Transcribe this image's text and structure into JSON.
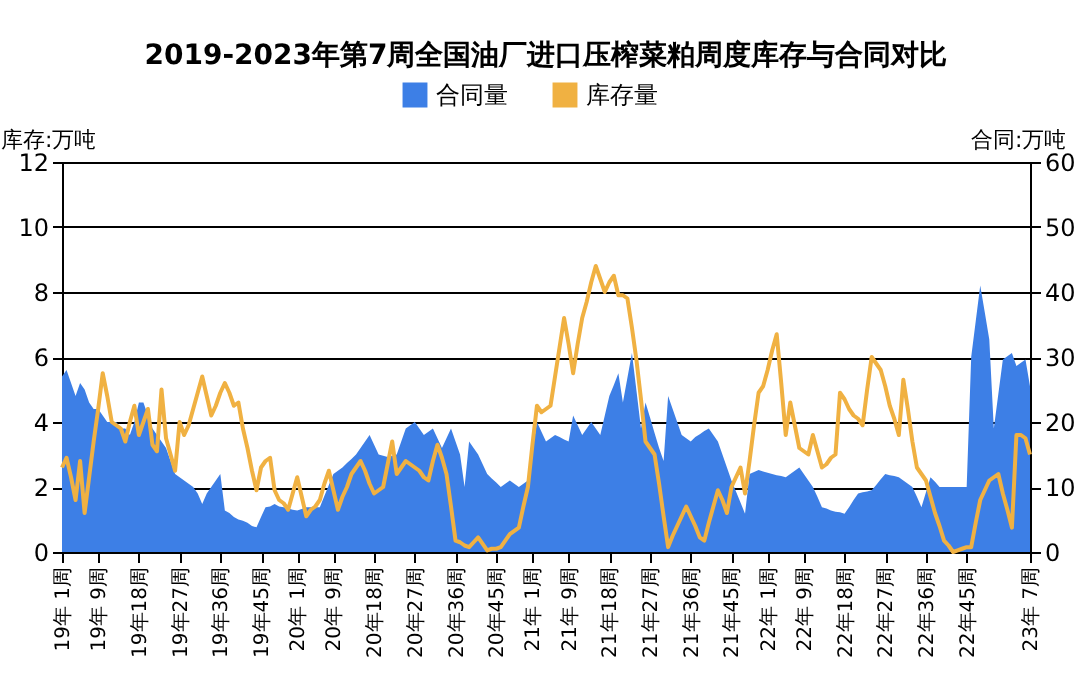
{
  "chart_data": {
    "type": "line",
    "title": "2019-2023年第7周全国油厂进口压榨菜粕周度库存与合同对比",
    "ylabel": "库存:万吨",
    "y2label": "合同:万吨",
    "legend": "top",
    "grid": "y",
    "categories": [
      "19年 1周",
      null,
      null,
      null,
      null,
      null,
      null,
      null,
      "19年 9周",
      null,
      null,
      null,
      null,
      null,
      null,
      null,
      null,
      "19年18周",
      null,
      null,
      null,
      null,
      null,
      null,
      null,
      null,
      "19年27周",
      null,
      null,
      null,
      null,
      null,
      null,
      null,
      null,
      "19年36周",
      null,
      null,
      null,
      null,
      null,
      null,
      null,
      null,
      "19年45周",
      null,
      null,
      null,
      null,
      null,
      null,
      null,
      "20年 1周",
      null,
      null,
      null,
      null,
      null,
      null,
      null,
      "20年 9周",
      null,
      null,
      null,
      null,
      null,
      null,
      null,
      null,
      "20年18周",
      null,
      null,
      null,
      null,
      null,
      null,
      null,
      null,
      "20年27周",
      null,
      null,
      null,
      null,
      null,
      null,
      null,
      null,
      "20年36周",
      null,
      null,
      null,
      null,
      null,
      null,
      null,
      null,
      "20年45周",
      null,
      null,
      null,
      null,
      null,
      null,
      null,
      "21年 1周",
      null,
      null,
      null,
      null,
      null,
      null,
      null,
      "21年 9周",
      null,
      null,
      null,
      null,
      null,
      null,
      null,
      null,
      "21年18周",
      null,
      null,
      null,
      null,
      null,
      null,
      null,
      null,
      "21年27周",
      null,
      null,
      null,
      null,
      null,
      null,
      null,
      null,
      "21年36周",
      null,
      null,
      null,
      null,
      null,
      null,
      null,
      null,
      "21年45周",
      null,
      null,
      null,
      null,
      null,
      null,
      null,
      "22年 1周",
      null,
      null,
      null,
      null,
      null,
      null,
      null,
      "22年 9周",
      null,
      null,
      null,
      null,
      null,
      null,
      null,
      null,
      "22年18周",
      null,
      null,
      null,
      null,
      null,
      null,
      null,
      null,
      "22年27周",
      null,
      null,
      null,
      null,
      null,
      null,
      null,
      null,
      "22年36周",
      null,
      null,
      null,
      null,
      null,
      null,
      null,
      null,
      "22年45周",
      null,
      null,
      null,
      null,
      null,
      null,
      null,
      null,
      null,
      null,
      null,
      null,
      null,
      "23年 7周"
    ],
    "ylim": [
      0,
      12
    ],
    "yticks": [
      0,
      2,
      4,
      6,
      8,
      10,
      12
    ],
    "y2lim": [
      0,
      60
    ],
    "y2ticks": [
      0,
      10,
      20,
      30,
      40,
      50,
      60
    ],
    "series": [
      {
        "name": "合同量",
        "type": "area",
        "axis": "y2",
        "color": "#3d7fe6",
        "values": [
          27,
          28,
          26,
          24,
          26,
          25,
          23,
          22,
          22,
          21,
          20,
          20,
          20,
          19,
          19,
          18,
          20,
          23,
          23,
          21,
          19,
          18,
          17,
          16,
          14,
          12,
          11.5,
          11,
          10.5,
          10,
          9,
          7.4,
          9,
          10,
          11,
          12,
          6.4,
          6,
          5.4,
          5,
          4.8,
          4.5,
          4,
          3.8,
          5.4,
          6.9,
          7,
          7.4,
          7,
          6.9,
          6.7,
          6.5,
          6.4,
          6.6,
          6.9,
          6.9,
          6.9,
          6.9,
          8.6,
          10.3,
          12,
          12.5,
          13,
          13.7,
          14.3,
          15,
          16,
          17,
          18,
          16.5,
          15,
          14.8,
          14.6,
          14.8,
          15,
          17,
          19,
          19.5,
          20,
          19,
          18,
          18.5,
          19,
          17.5,
          16,
          17.5,
          19,
          17,
          15,
          10,
          17,
          16,
          15,
          13.5,
          12,
          11.3,
          10.7,
          10,
          10.5,
          11,
          10.5,
          10,
          10.5,
          11,
          15.5,
          20,
          18.5,
          17,
          17.5,
          18,
          17.7,
          17.3,
          17,
          21,
          19.5,
          18,
          19,
          20,
          19,
          18,
          21,
          24,
          25.7,
          27.5,
          23,
          26.8,
          30.6,
          24.8,
          19,
          23,
          20.7,
          18.3,
          16,
          14,
          24,
          22,
          20,
          18,
          17.5,
          17,
          17.7,
          18.1,
          18.6,
          19,
          18,
          17,
          15,
          13,
          11,
          9.3,
          7.6,
          5.9,
          12,
          12.3,
          12.6,
          12.4,
          12.2,
          12,
          11.8,
          11.7,
          11.5,
          12,
          12.5,
          13,
          12,
          11,
          10,
          8.5,
          6.9,
          6.7,
          6.4,
          6.2,
          6.1,
          5.9,
          6.9,
          8,
          9,
          9.2,
          9.3,
          9.5,
          10.3,
          11.2,
          12,
          11.8,
          11.7,
          11.5,
          11,
          10.5,
          10,
          8.5,
          6.9,
          9.2,
          11.5,
          10.8,
          10,
          10,
          10,
          10,
          10,
          10,
          10,
          30,
          35.5,
          41,
          36.9,
          32.7,
          19,
          24.3,
          29.6,
          30.1,
          30.6,
          28.6,
          29.1,
          29.6,
          25.5
        ]
      },
      {
        "name": "库存量",
        "color": "#f0b142",
        "values": [
          2.6,
          2.9,
          2.3,
          1.6,
          2.8,
          1.2,
          2.3,
          3.4,
          4.4,
          5.5,
          4.8,
          4,
          3.9,
          3.8,
          3.4,
          4,
          4.5,
          3.6,
          4,
          4.4,
          3.3,
          3.1,
          5,
          3.5,
          3,
          2.5,
          4,
          3.6,
          3.9,
          4.4,
          4.9,
          5.4,
          4.8,
          4.2,
          4.5,
          4.9,
          5.2,
          4.9,
          4.5,
          4.6,
          3.8,
          3.2,
          2.5,
          1.9,
          2.6,
          2.8,
          2.9,
          1.9,
          1.6,
          1.5,
          1.3,
          1.8,
          2.3,
          1.7,
          1.1,
          1.3,
          1.4,
          1.6,
          2.1,
          2.5,
          1.9,
          1.3,
          1.7,
          2,
          2.4,
          2.6,
          2.8,
          2.5,
          2.1,
          1.8,
          1.9,
          2,
          2.7,
          3.4,
          2.4,
          2.6,
          2.8,
          2.7,
          2.6,
          2.5,
          2.3,
          2.2,
          2.8,
          3.3,
          2.9,
          2.4,
          1.4,
          0.35,
          0.3,
          0.2,
          0.15,
          0.3,
          0.45,
          0.25,
          0.05,
          0.1,
          0.1,
          0.15,
          0.35,
          0.55,
          0.65,
          0.75,
          1.4,
          2,
          3.3,
          4.5,
          4.3,
          4.4,
          4.5,
          5.4,
          6.3,
          7.2,
          6.4,
          5.5,
          6.4,
          7.2,
          7.7,
          8.3,
          8.8,
          8.4,
          8,
          8.3,
          8.5,
          7.9,
          7.9,
          7.8,
          6.9,
          5.9,
          4.7,
          3.4,
          3.2,
          3,
          2.1,
          1.1,
          0.15,
          0.5,
          0.8,
          1.1,
          1.4,
          1.1,
          0.8,
          0.45,
          0.35,
          0.9,
          1.4,
          1.9,
          1.6,
          1.2,
          2,
          2.3,
          2.6,
          1.8,
          2.8,
          3.9,
          4.9,
          5.1,
          5.6,
          6.2,
          6.7,
          5.2,
          3.6,
          4.6,
          3.9,
          3.2,
          3.1,
          3,
          3.6,
          3.1,
          2.6,
          2.7,
          2.9,
          3,
          4.9,
          4.7,
          4.4,
          4.2,
          4.1,
          3.9,
          5,
          6,
          5.8,
          5.6,
          5.1,
          4.5,
          4.1,
          3.6,
          5.3,
          4.4,
          3.4,
          2.6,
          2.4,
          2.2,
          1.7,
          1.2,
          0.8,
          0.35,
          0.2,
          0,
          0.05,
          0.1,
          0.15,
          0.15,
          0.9,
          1.6,
          1.9,
          2.2,
          2.3,
          2.4,
          1.8,
          1.3,
          0.75,
          3.6,
          3.6,
          3.5,
          3
        ]
      }
    ]
  }
}
